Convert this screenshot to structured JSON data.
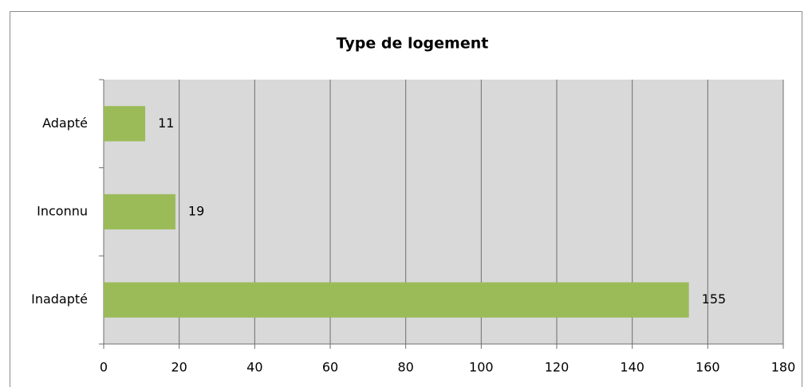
{
  "chart_data": {
    "type": "bar",
    "orientation": "horizontal",
    "title": "Type de logement",
    "categories": [
      "Adapté",
      "Inconnu",
      "Inadapté"
    ],
    "values": [
      11,
      19,
      155
    ],
    "color": "#9bbb59",
    "xlim": [
      0,
      180
    ],
    "xticks": [
      0,
      20,
      40,
      60,
      80,
      100,
      120,
      140,
      160,
      180
    ],
    "grid": true,
    "data_labels": true
  }
}
